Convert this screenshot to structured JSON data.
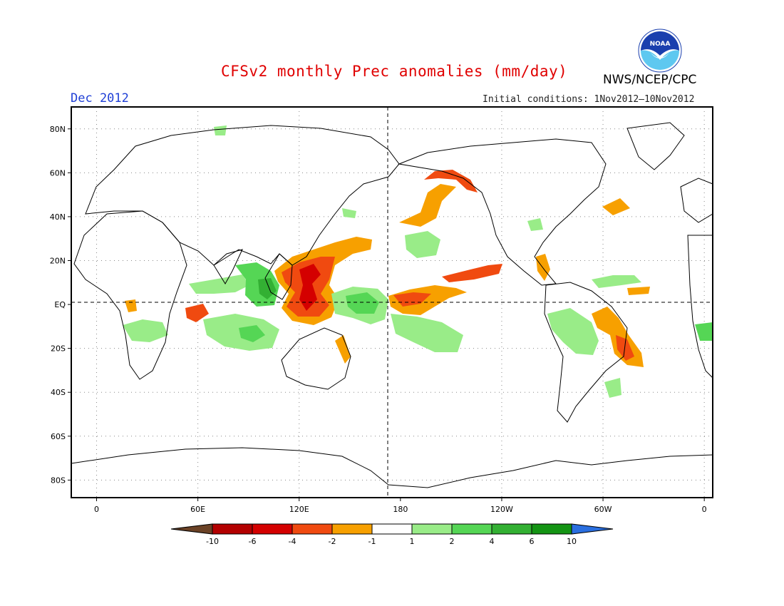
{
  "header": {
    "title": "CFSv2 monthly Prec anomalies (mm/day)",
    "organization": "NWS/NCEP/CPC",
    "logo_text": "NOAA",
    "month": "Dec 2012",
    "initial_conditions": "Initial conditions: 1Nov2012–10Nov2012"
  },
  "map": {
    "lat_labels": [
      {
        "text": "80N",
        "lat": 80
      },
      {
        "text": "60N",
        "lat": 60
      },
      {
        "text": "40N",
        "lat": 40
      },
      {
        "text": "20N",
        "lat": 20
      },
      {
        "text": "EQ",
        "lat": 0
      },
      {
        "text": "20S",
        "lat": -20
      },
      {
        "text": "40S",
        "lat": -40
      },
      {
        "text": "60S",
        "lat": -60
      },
      {
        "text": "80S",
        "lat": -80
      }
    ],
    "lon_labels": [
      {
        "text": "0",
        "lon": 0
      },
      {
        "text": "60E",
        "lon": 60
      },
      {
        "text": "120E",
        "lon": 120
      },
      {
        "text": "180",
        "lon": 180
      },
      {
        "text": "120W",
        "lon": 240
      },
      {
        "text": "60W",
        "lon": 300
      },
      {
        "text": "0",
        "lon": 360
      }
    ]
  },
  "legend": {
    "labels": [
      "-10",
      "-6",
      "-4",
      "-2",
      "-1",
      "1",
      "2",
      "4",
      "6",
      "10"
    ],
    "colors": [
      "#6b4226",
      "#b30000",
      "#d40000",
      "#f04a10",
      "#f7a000",
      "#ffffff",
      "#99ec88",
      "#55d655",
      "#33b033",
      "#149414",
      "#2a6fe0"
    ]
  }
}
